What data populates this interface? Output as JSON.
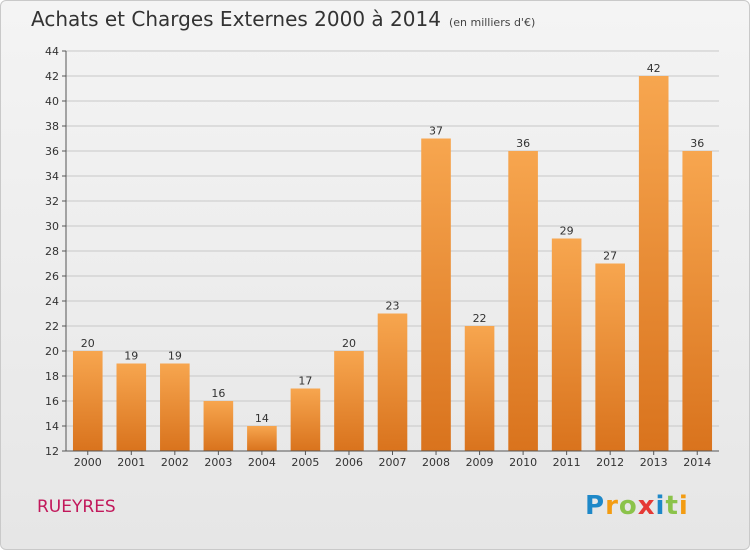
{
  "title": "Achats et Charges Externes 2000 à 2014",
  "subtitle": "(en milliers d'€)",
  "place": "RUEYRES",
  "logo": "Proxiti",
  "colors": {
    "bar_top": "#f7a64f",
    "bar_bottom": "#d9731d",
    "grid": "#c8c8c8",
    "axis": "#555555"
  },
  "chart_data": {
    "type": "bar",
    "title": "Achats et Charges Externes 2000 à 2014",
    "subtitle": "(en milliers d'€)",
    "categories": [
      "2000",
      "2001",
      "2002",
      "2003",
      "2004",
      "2005",
      "2006",
      "2007",
      "2008",
      "2009",
      "2010",
      "2011",
      "2012",
      "2013",
      "2014"
    ],
    "values": [
      20,
      19,
      19,
      16,
      14,
      17,
      20,
      23,
      37,
      22,
      36,
      29,
      27,
      42,
      36
    ],
    "ylim": [
      12,
      44
    ],
    "yticks": [
      12,
      14,
      16,
      18,
      20,
      22,
      24,
      26,
      28,
      30,
      32,
      34,
      36,
      38,
      40,
      42,
      44
    ],
    "grid": true,
    "legend": "none"
  }
}
